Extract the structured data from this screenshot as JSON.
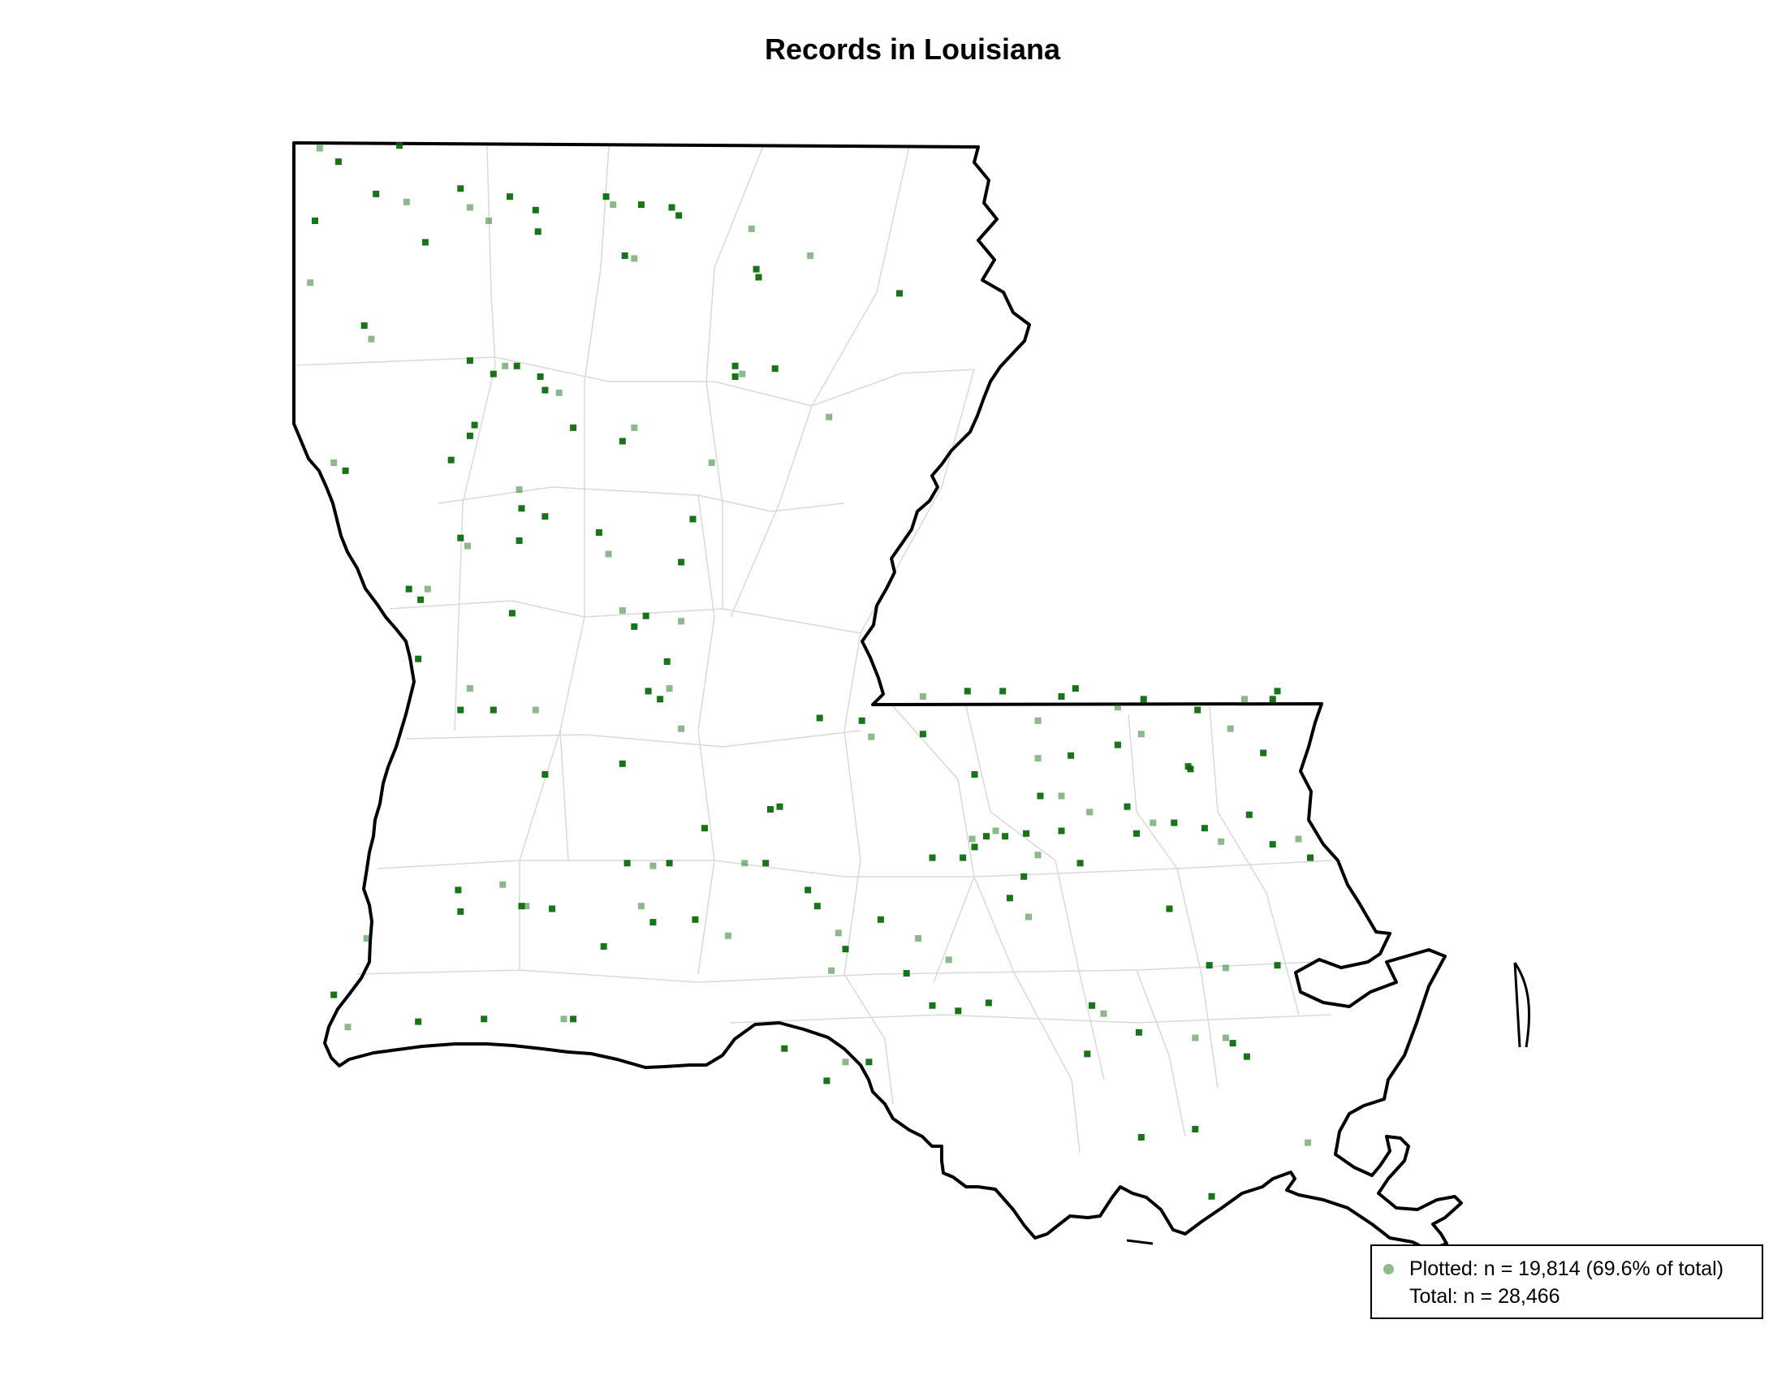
{
  "title": "Records in Louisiana",
  "colors": {
    "point": "#006400",
    "legend_swatch": "#8fbc8f",
    "state_border": "#000000",
    "parish_border": "#d9d9d9",
    "background": "#ffffff"
  },
  "legend": {
    "plotted": "Plotted: n = 19,814 (69.6% of total)",
    "total": "Total: n = 28,466"
  },
  "chart_data": {
    "type": "scatter",
    "title": "Records in Louisiana",
    "series": [
      {
        "name": "Plotted",
        "points": [
          [
            -93.94,
            33.0
          ],
          [
            -93.86,
            32.95
          ],
          [
            -93.96,
            32.73
          ],
          [
            -93.98,
            32.5
          ],
          [
            -93.6,
            33.01
          ],
          [
            -93.7,
            32.83
          ],
          [
            -93.57,
            32.8
          ],
          [
            -93.49,
            32.65
          ],
          [
            -93.34,
            32.85
          ],
          [
            -93.3,
            32.78
          ],
          [
            -93.13,
            32.82
          ],
          [
            -93.02,
            32.77
          ],
          [
            -93.22,
            32.73
          ],
          [
            -93.01,
            32.69
          ],
          [
            -92.72,
            32.82
          ],
          [
            -92.69,
            32.79
          ],
          [
            -92.57,
            32.79
          ],
          [
            -92.64,
            32.6
          ],
          [
            -92.6,
            32.59
          ],
          [
            -92.44,
            32.78
          ],
          [
            -92.41,
            32.75
          ],
          [
            -92.1,
            32.7
          ],
          [
            -92.08,
            32.55
          ],
          [
            -92.07,
            32.52
          ],
          [
            -91.85,
            32.6
          ],
          [
            -91.47,
            32.46
          ],
          [
            -93.75,
            32.34
          ],
          [
            -93.72,
            32.29
          ],
          [
            -93.3,
            32.21
          ],
          [
            -93.2,
            32.16
          ],
          [
            -93.15,
            32.19
          ],
          [
            -93.1,
            32.19
          ],
          [
            -93.0,
            32.15
          ],
          [
            -92.92,
            32.09
          ],
          [
            -92.86,
            31.96
          ],
          [
            -92.98,
            32.1
          ],
          [
            -92.6,
            31.96
          ],
          [
            -92.65,
            31.91
          ],
          [
            -92.17,
            32.19
          ],
          [
            -92.14,
            32.16
          ],
          [
            -92.0,
            32.18
          ],
          [
            -92.17,
            32.15
          ],
          [
            -91.77,
            32.0
          ],
          [
            -93.28,
            31.97
          ],
          [
            -93.3,
            31.93
          ],
          [
            -93.88,
            31.83
          ],
          [
            -93.83,
            31.8
          ],
          [
            -93.38,
            31.84
          ],
          [
            -93.09,
            31.73
          ],
          [
            -93.08,
            31.66
          ],
          [
            -92.98,
            31.63
          ],
          [
            -92.27,
            31.83
          ],
          [
            -92.35,
            31.62
          ],
          [
            -93.34,
            31.55
          ],
          [
            -93.31,
            31.52
          ],
          [
            -93.09,
            31.54
          ],
          [
            -92.75,
            31.57
          ],
          [
            -92.71,
            31.49
          ],
          [
            -92.4,
            31.46
          ],
          [
            -93.56,
            31.36
          ],
          [
            -93.48,
            31.36
          ],
          [
            -93.51,
            31.32
          ],
          [
            -93.12,
            31.27
          ],
          [
            -92.65,
            31.28
          ],
          [
            -92.55,
            31.26
          ],
          [
            -92.6,
            31.22
          ],
          [
            -92.4,
            31.24
          ],
          [
            -92.46,
            31.09
          ],
          [
            -93.52,
            31.1
          ],
          [
            -93.3,
            30.99
          ],
          [
            -93.34,
            30.91
          ],
          [
            -93.2,
            30.91
          ],
          [
            -93.02,
            30.91
          ],
          [
            -92.54,
            30.98
          ],
          [
            -92.49,
            30.95
          ],
          [
            -92.45,
            30.99
          ],
          [
            -92.98,
            30.67
          ],
          [
            -92.65,
            30.71
          ],
          [
            -92.4,
            30.84
          ],
          [
            -92.02,
            30.54
          ],
          [
            -91.81,
            30.88
          ],
          [
            -93.06,
            30.18
          ],
          [
            -92.95,
            30.17
          ],
          [
            -92.63,
            30.34
          ],
          [
            -92.52,
            30.33
          ],
          [
            -92.45,
            30.34
          ],
          [
            -92.3,
            30.47
          ],
          [
            -92.13,
            30.34
          ],
          [
            -92.04,
            30.34
          ],
          [
            -91.98,
            30.55
          ],
          [
            -93.74,
            30.06
          ],
          [
            -93.35,
            30.24
          ],
          [
            -93.34,
            30.16
          ],
          [
            -93.16,
            30.26
          ],
          [
            -93.08,
            30.18
          ],
          [
            -92.73,
            30.03
          ],
          [
            -92.57,
            30.18
          ],
          [
            -92.52,
            30.12
          ],
          [
            -92.34,
            30.13
          ],
          [
            -92.2,
            30.07
          ],
          [
            -91.86,
            30.24
          ],
          [
            -91.82,
            30.18
          ],
          [
            -91.73,
            30.08
          ],
          [
            -91.7,
            30.02
          ],
          [
            -91.55,
            30.13
          ],
          [
            -91.39,
            30.06
          ],
          [
            -91.33,
            30.36
          ],
          [
            -91.2,
            30.36
          ],
          [
            -91.16,
            30.43
          ],
          [
            -91.15,
            30.4
          ],
          [
            -91.1,
            30.44
          ],
          [
            -91.06,
            30.46
          ],
          [
            -91.02,
            30.44
          ],
          [
            -90.93,
            30.45
          ],
          [
            -90.88,
            30.37
          ],
          [
            -90.94,
            30.29
          ],
          [
            -91.0,
            30.21
          ],
          [
            -90.92,
            30.14
          ],
          [
            -90.78,
            30.46
          ],
          [
            -90.7,
            30.34
          ],
          [
            -90.66,
            30.53
          ],
          [
            -90.5,
            30.55
          ],
          [
            -90.46,
            30.45
          ],
          [
            -90.39,
            30.49
          ],
          [
            -90.3,
            30.49
          ],
          [
            -90.17,
            30.47
          ],
          [
            -90.1,
            30.42
          ],
          [
            -89.98,
            30.52
          ],
          [
            -89.88,
            30.41
          ],
          [
            -89.77,
            30.43
          ],
          [
            -89.72,
            30.36
          ],
          [
            -91.37,
            30.82
          ],
          [
            -91.37,
            30.96
          ],
          [
            -91.18,
            30.98
          ],
          [
            -91.03,
            30.98
          ],
          [
            -90.88,
            30.87
          ],
          [
            -90.78,
            30.96
          ],
          [
            -90.72,
            30.99
          ],
          [
            -90.54,
            30.92
          ],
          [
            -90.43,
            30.95
          ],
          [
            -90.2,
            30.91
          ],
          [
            -90.0,
            30.95
          ],
          [
            -89.88,
            30.95
          ],
          [
            -89.86,
            30.98
          ],
          [
            -90.88,
            30.73
          ],
          [
            -90.74,
            30.74
          ],
          [
            -90.54,
            30.78
          ],
          [
            -90.44,
            30.82
          ],
          [
            -90.23,
            30.69
          ],
          [
            -90.24,
            30.7
          ],
          [
            -90.06,
            30.84
          ],
          [
            -89.92,
            30.75
          ],
          [
            -91.63,
            30.87
          ],
          [
            -91.59,
            30.81
          ],
          [
            -91.15,
            30.67
          ],
          [
            -90.87,
            30.59
          ],
          [
            -90.78,
            30.59
          ],
          [
            -90.32,
            30.17
          ],
          [
            -90.15,
            29.96
          ],
          [
            -90.08,
            29.95
          ],
          [
            -89.86,
            29.96
          ],
          [
            -90.65,
            29.81
          ],
          [
            -90.6,
            29.78
          ],
          [
            -90.45,
            29.71
          ],
          [
            -90.67,
            29.63
          ],
          [
            -90.08,
            29.69
          ],
          [
            -90.05,
            29.67
          ],
          [
            -91.44,
            29.93
          ],
          [
            -91.26,
            29.98
          ],
          [
            -91.33,
            29.81
          ],
          [
            -91.22,
            29.79
          ],
          [
            -91.7,
            29.6
          ],
          [
            -91.6,
            29.6
          ],
          [
            -91.09,
            29.82
          ],
          [
            -90.21,
            29.69
          ],
          [
            -90.21,
            29.35
          ],
          [
            -89.99,
            29.62
          ],
          [
            -89.73,
            29.3
          ],
          [
            -90.14,
            29.1
          ],
          [
            -90.44,
            29.32
          ],
          [
            -92.9,
            29.76
          ],
          [
            -92.86,
            29.76
          ],
          [
            -93.24,
            29.76
          ],
          [
            -93.82,
            29.73
          ],
          [
            -93.88,
            29.85
          ],
          [
            -93.52,
            29.75
          ],
          [
            -91.76,
            29.94
          ],
          [
            -91.96,
            29.65
          ],
          [
            -91.78,
            29.53
          ]
        ]
      }
    ],
    "legend": {
      "entries": [
        "Plotted: n = 19,814 (69.6% of total)",
        "Total: n = 28,466"
      ],
      "placement": "bottom-right"
    },
    "xlim": [
      -94.05,
      -88.8
    ],
    "ylim": [
      28.9,
      33.02
    ]
  }
}
